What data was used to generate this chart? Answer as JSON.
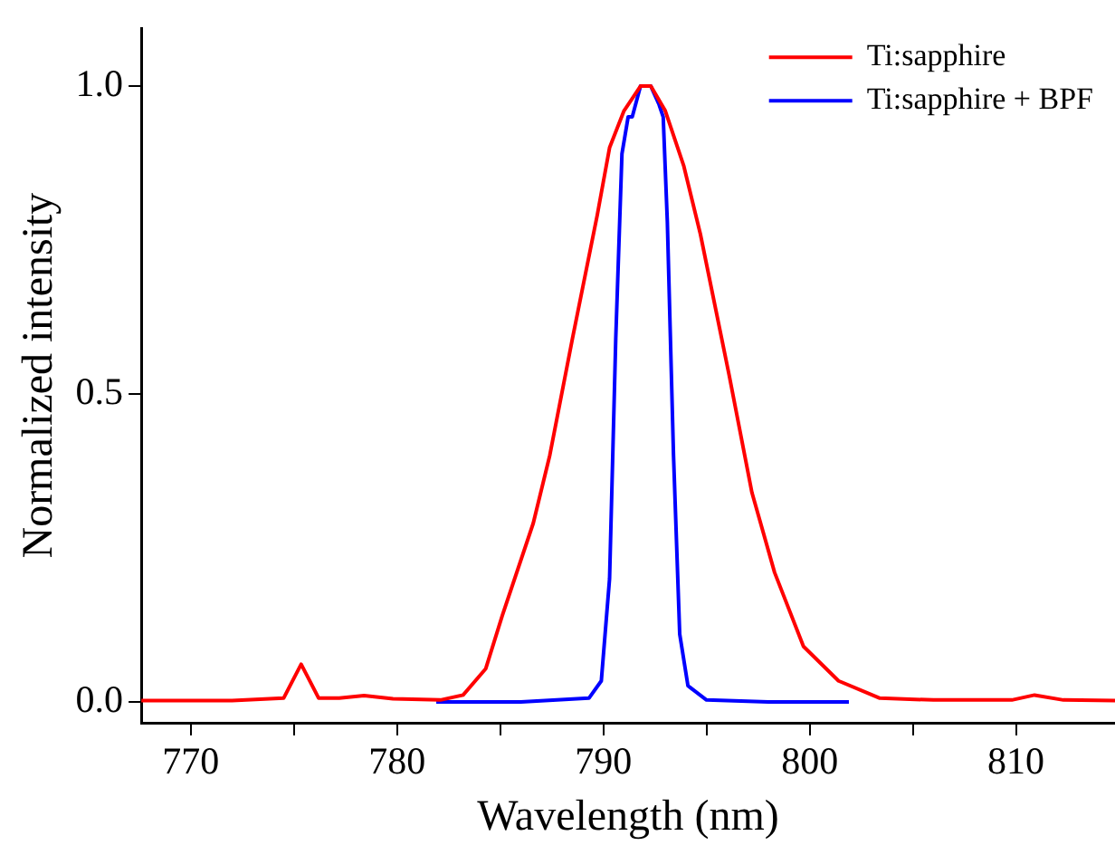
{
  "chart_data": {
    "type": "line",
    "xlabel": "Wavelength (nm)",
    "ylabel": "Normalized intensity",
    "xlim": [
      767.6,
      814.8
    ],
    "ylim": [
      -0.034,
      1.094
    ],
    "xticks": [
      770,
      {
        "value": 775,
        "label": null
      },
      780,
      {
        "value": 785,
        "label": null
      },
      790,
      {
        "value": 795,
        "label": null
      },
      800,
      {
        "value": 805,
        "label": null
      },
      810
    ],
    "yticks": [
      {
        "value": 0,
        "label": "0.0"
      },
      {
        "value": 0.5,
        "label": "0.5"
      },
      {
        "value": 1,
        "label": "1.0"
      }
    ],
    "grid": false,
    "legend": "top right",
    "marker": "none",
    "line_style": "solid",
    "series": [
      {
        "name": "Ti:sapphire",
        "color": "#ff0000",
        "x": [
          767.6,
          772,
          774.5,
          775.35,
          776.2,
          777.2,
          778.4,
          779.8,
          782.1,
          783.2,
          784.3,
          785.1,
          786.6,
          787.4,
          788.5,
          789.7,
          790.3,
          791.0,
          791.8,
          792.3,
          793.0,
          793.9,
          794.7,
          796.1,
          797.2,
          798.3,
          799.7,
          801.4,
          803.4,
          806,
          809.8,
          810.9,
          812.3,
          814.8
        ],
        "values": [
          0.002,
          0.002,
          0.006,
          0.061,
          0.006,
          0.006,
          0.01,
          0.005,
          0.003,
          0.011,
          0.054,
          0.14,
          0.29,
          0.4,
          0.59,
          0.79,
          0.9,
          0.96,
          1.0,
          1.0,
          0.96,
          0.87,
          0.76,
          0.53,
          0.34,
          0.21,
          0.09,
          0.034,
          0.006,
          0.003,
          0.003,
          0.011,
          0.003,
          0.002
        ]
      },
      {
        "name": "Ti:sapphire + BPF",
        "color": "#0000ff",
        "x": [
          781.9,
          786,
          789.3,
          789.9,
          790.3,
          790.6,
          790.9,
          791.2,
          791.4,
          791.8,
          792.3,
          792.7,
          792.9,
          793.1,
          793.4,
          793.7,
          794.1,
          795.0,
          798,
          801.9
        ],
        "values": [
          0.0,
          0.0,
          0.006,
          0.034,
          0.2,
          0.59,
          0.89,
          0.95,
          0.95,
          1.0,
          1.0,
          0.97,
          0.95,
          0.78,
          0.4,
          0.11,
          0.026,
          0.003,
          0.0,
          0.0
        ]
      }
    ]
  }
}
